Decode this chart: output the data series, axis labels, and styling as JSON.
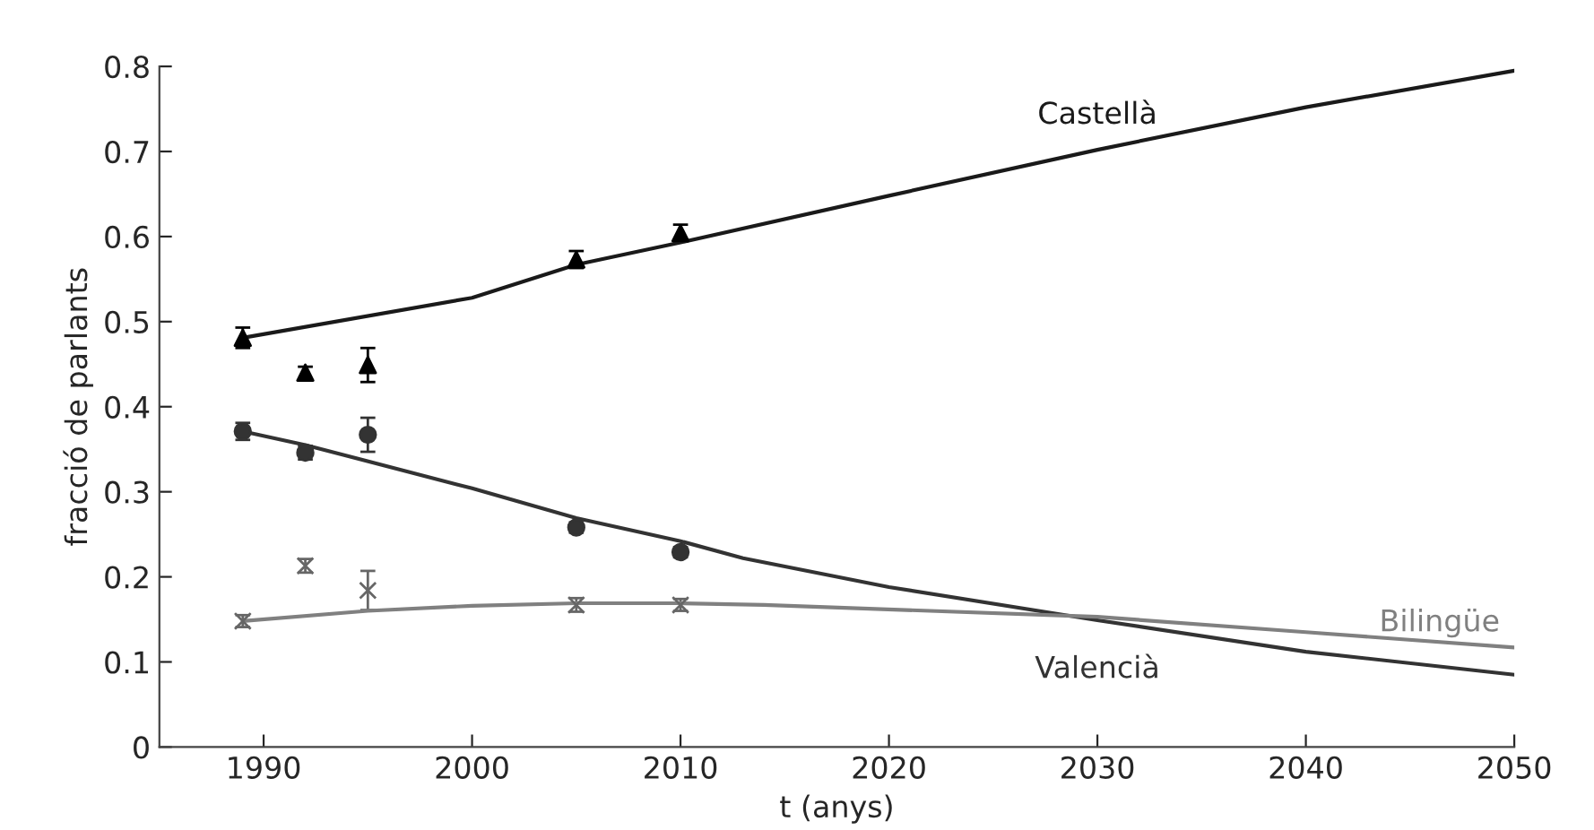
{
  "chart_data": {
    "type": "line",
    "xlabel": "t (anys)",
    "ylabel": "fracció de parlants",
    "xlim": [
      1985,
      2050
    ],
    "xticks": [
      1990,
      2000,
      2010,
      2020,
      2030,
      2040,
      2050
    ],
    "ylim": [
      0,
      0.8
    ],
    "yticks": [
      0,
      0.1,
      0.2,
      0.3,
      0.4,
      0.5,
      0.6,
      0.7,
      0.8
    ],
    "grid": false,
    "legend": false,
    "series": [
      {
        "type": "scatter",
        "marker": "triangle",
        "color": "#000000",
        "x": [
          1989,
          1992,
          1995,
          2005,
          2010
        ],
        "values": [
          0.481,
          0.44,
          0.449,
          0.573,
          0.604
        ],
        "errors": [
          0.012,
          0.007,
          0.02,
          0.01,
          0.01
        ]
      },
      {
        "type": "scatter",
        "marker": "circle",
        "color": "#333333",
        "x": [
          1989,
          1992,
          1995,
          2005,
          2010
        ],
        "values": [
          0.371,
          0.346,
          0.367,
          0.258,
          0.229
        ],
        "errors": [
          0.01,
          0.008,
          0.02,
          0.006,
          0.006
        ]
      },
      {
        "type": "scatter",
        "marker": "cross",
        "color": "#666666",
        "x": [
          1989,
          1992,
          1995,
          2005,
          2010
        ],
        "values": [
          0.148,
          0.213,
          0.184,
          0.167,
          0.167
        ],
        "errors": [
          0.007,
          0.008,
          0.023,
          0.008,
          0.007
        ]
      },
      {
        "name": "Castellà",
        "color": "#1a1a1a",
        "marker": "none",
        "line_style": "solid",
        "x": [
          1989,
          2000,
          2005,
          2010,
          2020,
          2030,
          2040,
          2050
        ],
        "values": [
          0.481,
          0.528,
          0.567,
          0.593,
          0.648,
          0.702,
          0.752,
          0.795
        ]
      },
      {
        "name": "Valencià",
        "color": "#333333",
        "marker": "none",
        "line_style": "solid",
        "x": [
          1989,
          1992,
          2000,
          2005,
          2010,
          2013,
          2020,
          2030,
          2040,
          2050
        ],
        "values": [
          0.371,
          0.355,
          0.304,
          0.269,
          0.242,
          0.222,
          0.188,
          0.149,
          0.112,
          0.085
        ]
      },
      {
        "name": "Bilingüe",
        "color": "#808080",
        "marker": "none",
        "line_style": "solid",
        "x": [
          1989,
          1995,
          2000,
          2005,
          2010,
          2014,
          2030,
          2040,
          2050
        ],
        "values": [
          0.148,
          0.16,
          0.166,
          0.169,
          0.169,
          0.167,
          0.153,
          0.135,
          0.117
        ]
      }
    ]
  }
}
